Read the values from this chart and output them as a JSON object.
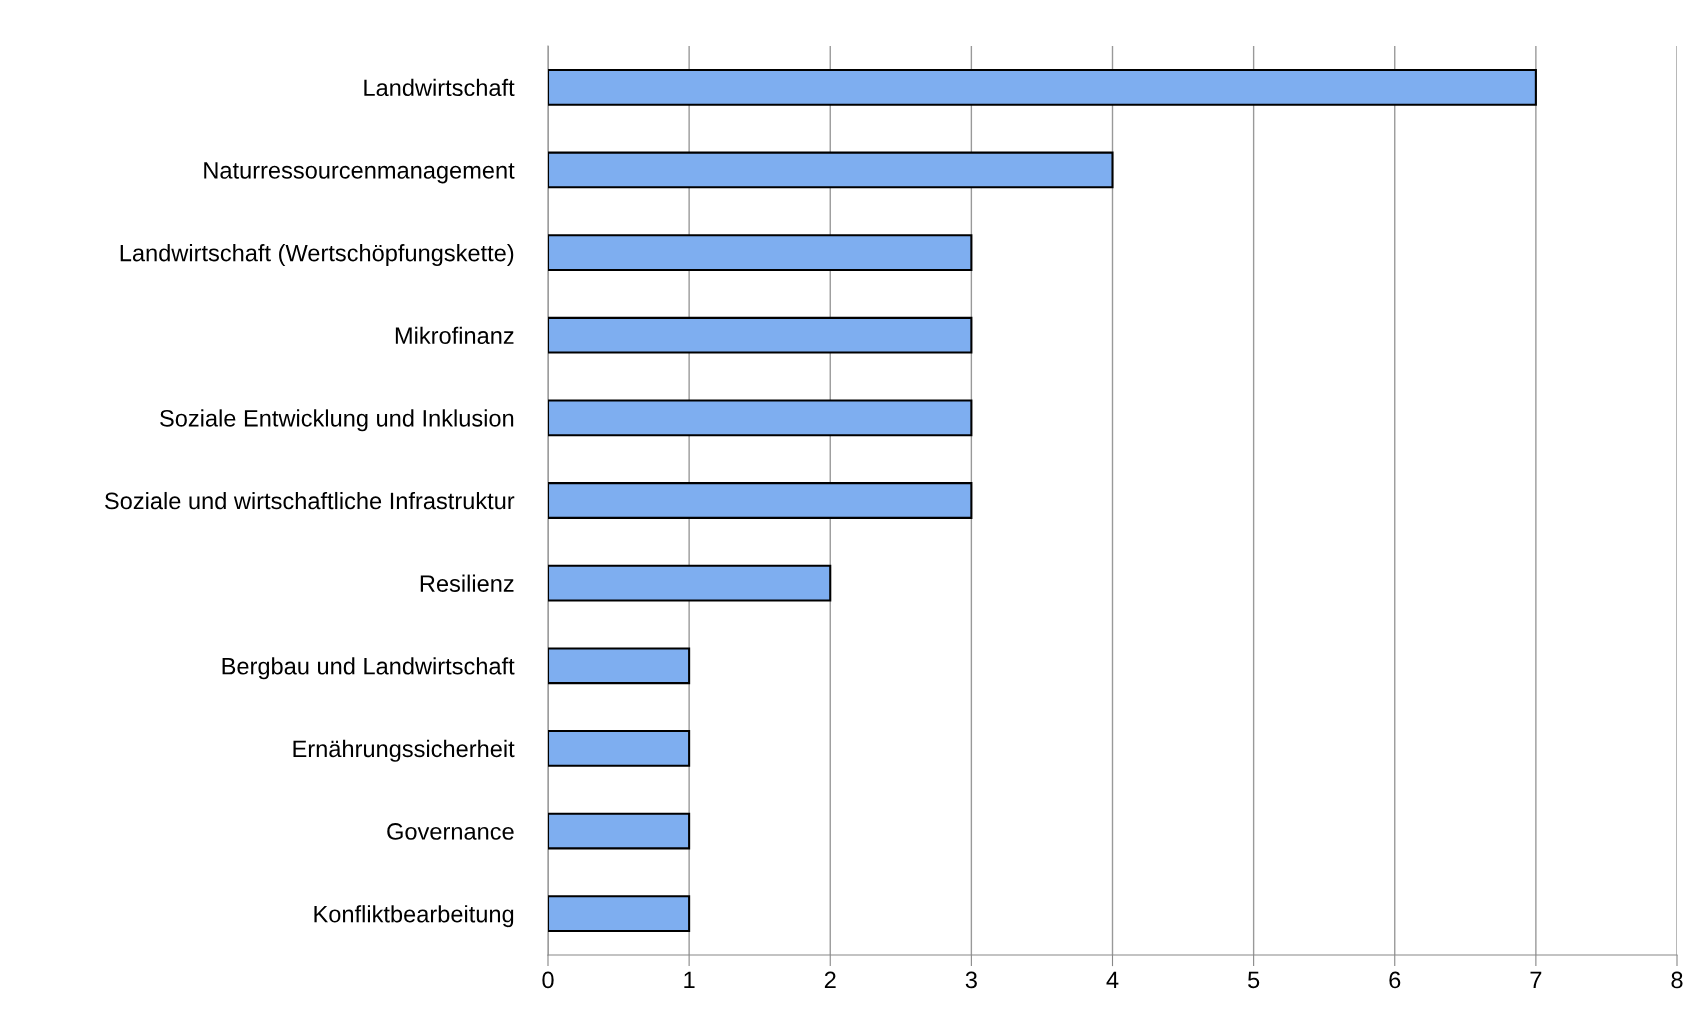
{
  "chart_data": {
    "type": "bar",
    "orientation": "horizontal",
    "categories": [
      "Landwirtschaft",
      "Naturressourcenmanagement",
      "Landwirtschaft (Wertschöpfungskette)",
      "Mikrofinanz",
      "Soziale Entwicklung und Inklusion",
      "Soziale und wirtschaftliche Infrastruktur",
      "Resilienz",
      "Bergbau und Landwirtschaft",
      "Ernährungssicherheit",
      "Governance",
      "Konfliktbearbeitung"
    ],
    "values": [
      7,
      4,
      3,
      3,
      3,
      3,
      2,
      1,
      1,
      1,
      1
    ],
    "color": "#7eaef0",
    "xlim": [
      0,
      8
    ],
    "xticks": [
      0,
      1,
      2,
      3,
      4,
      5,
      6,
      7,
      8
    ],
    "grid": "x",
    "legend": false
  }
}
